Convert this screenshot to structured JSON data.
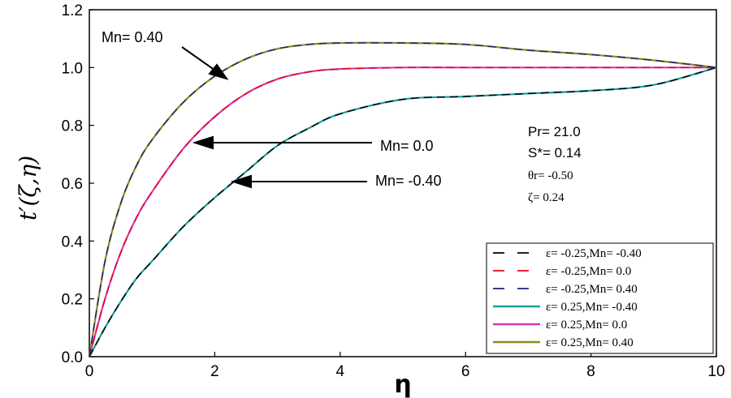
{
  "chart_data": {
    "type": "line",
    "xlabel": "η",
    "ylabel": "t′(ζ,η)",
    "xlim": [
      0,
      10
    ],
    "ylim": [
      0,
      1.2
    ],
    "x_ticks": [
      "0",
      "2",
      "4",
      "6",
      "8",
      "10"
    ],
    "y_ticks": [
      "0.0",
      "0.2",
      "0.4",
      "0.6",
      "0.8",
      "1.0",
      "1.2"
    ],
    "x": [
      0,
      0.25,
      0.5,
      0.75,
      1,
      1.5,
      2,
      2.5,
      3,
      3.5,
      4,
      5,
      6,
      7,
      8,
      9,
      10
    ],
    "series": [
      {
        "name": "ε= -0.25,Mn= -0.40",
        "color": "#000000",
        "style": "dashed",
        "values": [
          0,
          0.1,
          0.19,
          0.27,
          0.33,
          0.45,
          0.55,
          0.64,
          0.73,
          0.79,
          0.84,
          0.89,
          0.9,
          0.91,
          0.92,
          0.94,
          1.0
        ]
      },
      {
        "name": "ε= -0.25,Mn= 0.0",
        "color": "#e8001c",
        "style": "dashed",
        "values": [
          0,
          0.2,
          0.36,
          0.48,
          0.57,
          0.72,
          0.83,
          0.91,
          0.96,
          0.985,
          0.995,
          1.0,
          1.0,
          1.0,
          1.0,
          1.0,
          1.0
        ]
      },
      {
        "name": "ε= -0.25,Mn= 0.40",
        "color": "#1a237e",
        "style": "dashed",
        "values": [
          0,
          0.33,
          0.53,
          0.66,
          0.75,
          0.88,
          0.97,
          1.03,
          1.065,
          1.08,
          1.085,
          1.085,
          1.08,
          1.06,
          1.045,
          1.025,
          1.0
        ]
      },
      {
        "name": "ε= 0.25,Mn= -0.40",
        "color": "#1a9e9e",
        "style": "solid",
        "values": [
          0,
          0.1,
          0.19,
          0.27,
          0.33,
          0.45,
          0.55,
          0.64,
          0.73,
          0.79,
          0.84,
          0.89,
          0.9,
          0.91,
          0.92,
          0.94,
          1.0
        ]
      },
      {
        "name": "ε= 0.25,Mn= 0.0",
        "color": "#d13cb0",
        "style": "solid",
        "values": [
          0,
          0.2,
          0.36,
          0.48,
          0.57,
          0.72,
          0.83,
          0.91,
          0.96,
          0.985,
          0.995,
          1.0,
          1.0,
          1.0,
          1.0,
          1.0,
          1.0
        ]
      },
      {
        "name": "ε= 0.25,Mn= 0.40",
        "color": "#8f8a1f",
        "style": "solid",
        "values": [
          0,
          0.33,
          0.53,
          0.66,
          0.75,
          0.88,
          0.97,
          1.03,
          1.065,
          1.08,
          1.085,
          1.085,
          1.08,
          1.06,
          1.045,
          1.025,
          1.0
        ]
      }
    ],
    "annotations": {
      "mn_pos": "Mn= 0.40",
      "mn_zero": "Mn= 0.0",
      "mn_neg": "Mn= -0.40",
      "arrow_targets": [
        {
          "label": "mn_pos",
          "x": 2.2,
          "y": 0.97
        },
        {
          "label": "mn_zero",
          "x": 1.6,
          "y": 0.75
        },
        {
          "label": "mn_neg",
          "x": 2.2,
          "y": 0.6
        }
      ]
    },
    "parameters": {
      "pr": "Pr= 21.0",
      "s_star": "S*= 0.14",
      "theta_r": "θr= -0.50",
      "zeta": "ζ= 0.24"
    },
    "legend_position": "bottom-right"
  }
}
